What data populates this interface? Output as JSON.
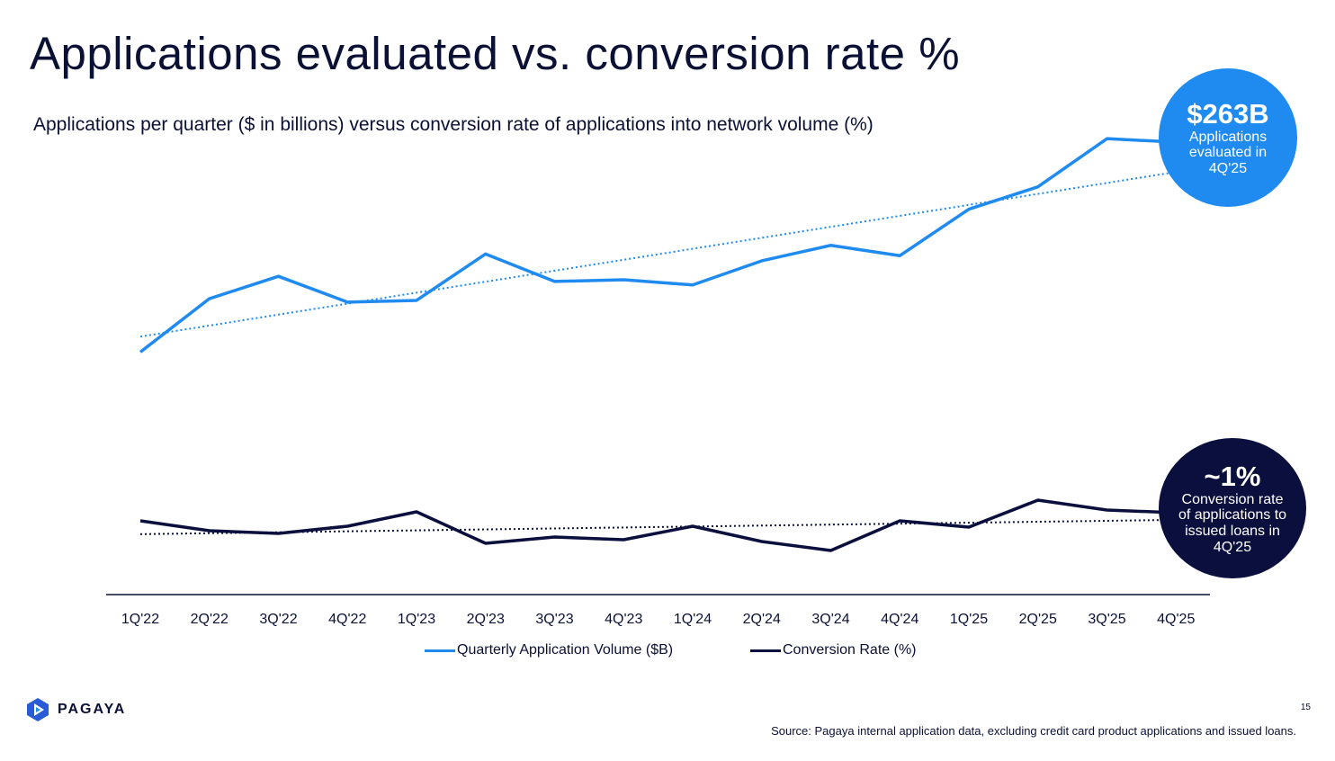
{
  "title": "Applications evaluated vs. conversion rate %",
  "subtitle": "Applications per quarter ($ in billions) versus conversion rate of applications into network volume (%)",
  "callouts": {
    "apps": {
      "value": "$263B",
      "text": "Applications evaluated in 4Q'25"
    },
    "conv": {
      "value": "~1%",
      "text": "Conversion rate of applications to issued loans in 4Q'25"
    }
  },
  "page_number": "15",
  "source": "Source: Pagaya internal application data, excluding credit card product applications and issued loans.",
  "logo": "PAGAYA",
  "colors": {
    "apps": "#1f8bf0",
    "conv": "#0a0f3d"
  },
  "chart_data": {
    "type": "line",
    "title": "Applications evaluated vs. conversion rate %",
    "categories": [
      "1Q'22",
      "2Q'22",
      "3Q'22",
      "4Q'22",
      "1Q'23",
      "2Q'23",
      "3Q'23",
      "4Q'23",
      "1Q'24",
      "2Q'24",
      "3Q'24",
      "4Q'24",
      "1Q'25",
      "2Q'25",
      "3Q'25",
      "4Q'25"
    ],
    "series": [
      {
        "name": "Quarterly Application Volume ($B)",
        "values": [
          141,
          172,
          185,
          170,
          171,
          198,
          182,
          183,
          180,
          194,
          203,
          197,
          224,
          237,
          265,
          263
        ],
        "trendline": "linear, dotted"
      },
      {
        "name": "Conversion Rate (%)",
        "values": [
          0.91,
          0.8,
          0.77,
          0.85,
          1.01,
          0.66,
          0.73,
          0.7,
          0.85,
          0.68,
          0.58,
          0.91,
          0.84,
          1.14,
          1.03,
          1.0
        ],
        "trendline": "linear, dotted"
      }
    ],
    "legend": "bottom",
    "grid": false
  }
}
